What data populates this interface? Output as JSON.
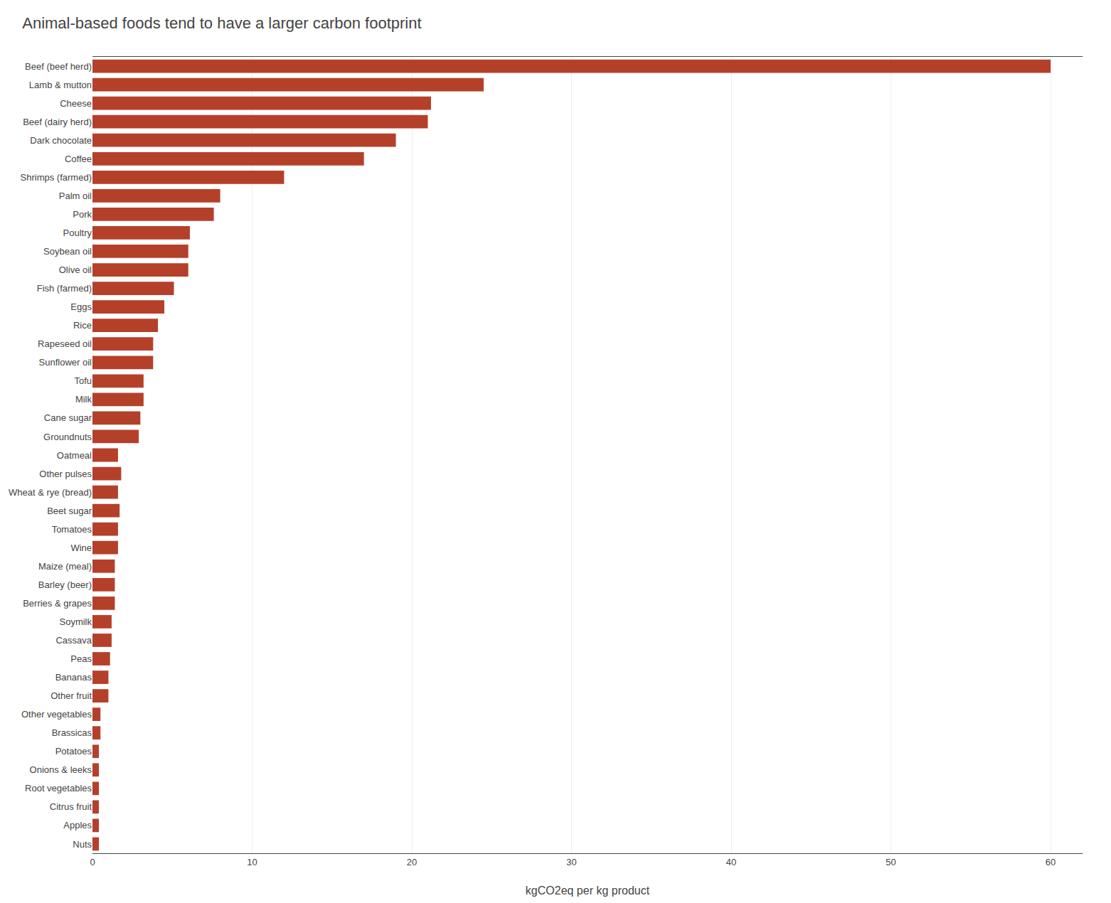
{
  "chart_data": {
    "type": "bar",
    "orientation": "horizontal",
    "title": "Animal-based foods tend to have a larger carbon footprint",
    "xlabel": "kgCO2eq per kg product",
    "categories": [
      "Beef (beef herd)",
      "Lamb & mutton",
      "Cheese",
      "Beef (dairy herd)",
      "Dark chocolate",
      "Coffee",
      "Shrimps (farmed)",
      "Palm oil",
      "Pork",
      "Poultry",
      "Soybean oil",
      "Olive oil",
      "Fish (farmed)",
      "Eggs",
      "Rice",
      "Rapeseed oil",
      "Sunflower oil",
      "Tofu",
      "Milk",
      "Cane sugar",
      "Groundnuts",
      "Oatmeal",
      "Other pulses",
      "Wheat & rye (bread)",
      "Beet sugar",
      "Tomatoes",
      "Wine",
      "Maize (meal)",
      "Barley (beer)",
      "Berries & grapes",
      "Soymilk",
      "Cassava",
      "Peas",
      "Bananas",
      "Other fruit",
      "Other vegetables",
      "Brassicas",
      "Potatoes",
      "Onions & leeks",
      "Root vegetables",
      "Citrus fruit",
      "Apples",
      "Nuts"
    ],
    "values": [
      60.0,
      24.5,
      21.2,
      21.0,
      19.0,
      17.0,
      12.0,
      8.0,
      7.6,
      6.1,
      6.0,
      6.0,
      5.1,
      4.5,
      4.1,
      3.8,
      3.8,
      3.2,
      3.2,
      3.0,
      2.9,
      1.6,
      1.8,
      1.6,
      1.7,
      1.6,
      1.6,
      1.4,
      1.4,
      1.4,
      1.2,
      1.2,
      1.1,
      1.0,
      1.0,
      0.5,
      0.5,
      0.4,
      0.4,
      0.4,
      0.4,
      0.4,
      0.4
    ],
    "color": "#b5402a",
    "xlim": [
      0,
      62
    ],
    "xticks": [
      0,
      10,
      20,
      30,
      40,
      50,
      60
    ],
    "grid": true
  }
}
